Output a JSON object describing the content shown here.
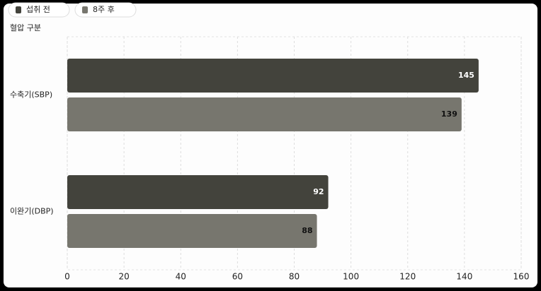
{
  "chart_data": {
    "type": "bar",
    "orientation": "horizontal",
    "y_label": "혈압 구분",
    "categories": [
      "수축기(SBP)",
      "이완기(DBP)"
    ],
    "series": [
      {
        "name": "섭취 전",
        "color": "#43433c",
        "label_color": "#ffffff",
        "values": [
          145,
          92
        ]
      },
      {
        "name": "8주 후",
        "color": "#77766e",
        "label_color": "#111111",
        "values": [
          139,
          88
        ]
      }
    ],
    "xlim": [
      0,
      160
    ],
    "xticks": [
      0,
      20,
      40,
      60,
      80,
      100,
      120,
      140,
      160
    ],
    "grid": true,
    "legend": "top-left"
  }
}
